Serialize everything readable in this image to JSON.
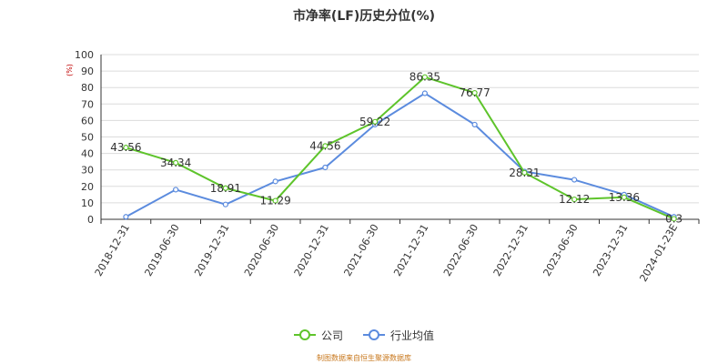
{
  "source_note": "制图数据来自恒生聚源数据库",
  "colors": {
    "company": "#5ec42b",
    "industry": "#5b8bde",
    "grid": "#dcdcdc",
    "axis": "#333333",
    "unit": "#c00000"
  },
  "chart_data": {
    "type": "line",
    "title": "市净率(LF)历史分位(%)",
    "ylabel": "(%)",
    "ylim": [
      0,
      100
    ],
    "yticks": [
      0,
      10,
      20,
      30,
      40,
      50,
      60,
      70,
      80,
      90,
      100
    ],
    "categories": [
      "2018-12-31",
      "2019-06-30",
      "2019-12-31",
      "2020-06-30",
      "2020-12-31",
      "2021-06-30",
      "2021-12-31",
      "2022-06-30",
      "2022-12-31",
      "2023-06-30",
      "2023-12-31",
      "2024-01-23E"
    ],
    "grid": true,
    "legend_position": "bottom-center",
    "series": [
      {
        "name": "公司",
        "color": "#5ec42b",
        "values": [
          43.56,
          34.34,
          18.91,
          11.29,
          44.56,
          59.22,
          86.35,
          76.77,
          28.31,
          12.12,
          13.36,
          0.3
        ],
        "labels": [
          "43.56",
          "34.34",
          "18.91",
          "11.29",
          "44.56",
          "59.22",
          "86.35",
          "76.77",
          "28.31",
          "12.12",
          "13.36",
          "0.3"
        ]
      },
      {
        "name": "行业均值",
        "color": "#5b8bde",
        "values": [
          1.5,
          18,
          9,
          23,
          31.5,
          57.5,
          76.5,
          57.5,
          29,
          24,
          15,
          1.5
        ]
      }
    ]
  }
}
